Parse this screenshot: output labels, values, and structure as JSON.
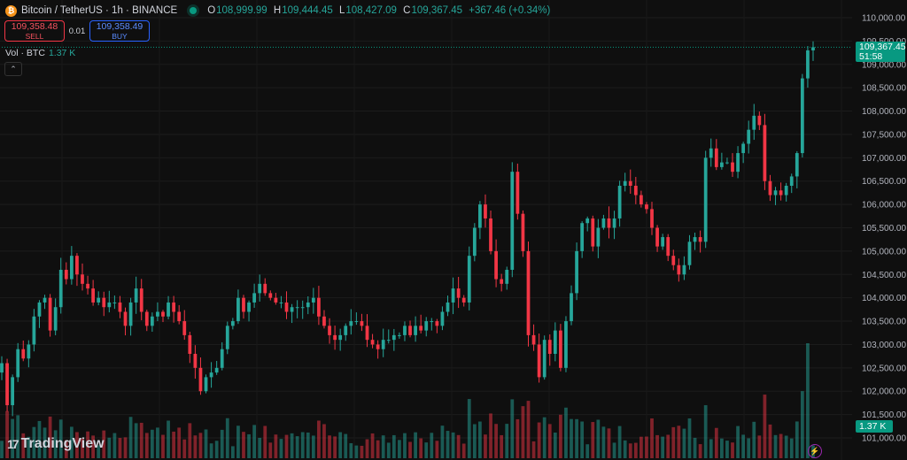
{
  "header": {
    "logo_glyph": "₿",
    "symbol": "Bitcoin / TetherUS · 1h · BINANCE",
    "ohlc": {
      "o_label": "O",
      "o": "108,999.99",
      "h_label": "H",
      "h": "109,444.45",
      "l_label": "L",
      "l": "108,427.09",
      "c_label": "C",
      "c": "109,367.45",
      "change": "+367.46 (+0.34%)"
    },
    "live_color": "#089981"
  },
  "trade": {
    "sell_price": "109,358.48",
    "sell_label": "SELL",
    "spread": "0.01",
    "buy_price": "109,358.49",
    "buy_label": "BUY"
  },
  "volume_legend": {
    "label": "Vol · BTC",
    "value": "1.37 K"
  },
  "collapse_glyph": "⌃",
  "price_tag": {
    "price": "109,367.45",
    "countdown": "51:58"
  },
  "volume_tag": "1.37 K",
  "branding": {
    "logo_mark": "17",
    "name": "TradingView"
  },
  "bolt_glyph": "⚡",
  "chart_data": {
    "type": "candlestick",
    "y_axis_ticks": [
      "110,000.00",
      "109,500.00",
      "109,000.00",
      "108,500.00",
      "108,000.00",
      "107,500.00",
      "107,000.00",
      "106,500.00",
      "106,000.00",
      "105,500.00",
      "105,000.00",
      "104,500.00",
      "104,000.00",
      "103,500.00",
      "103,000.00",
      "102,500.00",
      "102,000.00",
      "101,500.00",
      "101,000.00"
    ],
    "ylim": [
      100900,
      110200
    ],
    "up_color": "#26a69a",
    "down_color": "#f23645",
    "last_price": 109367.45,
    "candle_count": 152,
    "closes": [
      102600,
      101700,
      102300,
      102900,
      102700,
      103000,
      103600,
      103900,
      104000,
      103300,
      103800,
      104600,
      104400,
      104900,
      104500,
      104300,
      104200,
      103900,
      104000,
      103800,
      103900,
      103900,
      103700,
      103400,
      103900,
      104200,
      103700,
      103400,
      103600,
      103700,
      103600,
      103900,
      103700,
      103500,
      103200,
      102800,
      102500,
      102000,
      102300,
      102400,
      102500,
      102900,
      103400,
      103500,
      104000,
      103700,
      103900,
      104100,
      104300,
      104100,
      104000,
      103900,
      103900,
      103700,
      103800,
      103800,
      103800,
      103900,
      104000,
      103600,
      103400,
      103200,
      103100,
      103200,
      103400,
      103500,
      103500,
      103400,
      103100,
      103000,
      102900,
      103100,
      103100,
      103200,
      103200,
      103400,
      103200,
      103400,
      103300,
      103500,
      103500,
      103400,
      103700,
      103900,
      104200,
      104000,
      103900,
      104900,
      105500,
      106000,
      105700,
      105000,
      104400,
      104300,
      104600,
      106700,
      105800,
      105000,
      103200,
      103000,
      102300,
      103100,
      102800,
      103300,
      102500,
      103500,
      104100,
      105000,
      105600,
      105700,
      105100,
      105500,
      105700,
      105500,
      105700,
      106400,
      106500,
      106400,
      106200,
      106000,
      105900,
      105500,
      105100,
      105300,
      104900,
      104700,
      104500,
      104700,
      105200,
      105300,
      105200,
      107000,
      107200,
      106800,
      106900,
      106900,
      106700,
      107100,
      107300,
      107600,
      107900,
      107700,
      106500,
      106200,
      106300,
      106200,
      106400,
      106600,
      107100,
      108700,
      109300,
      109367
    ]
  }
}
